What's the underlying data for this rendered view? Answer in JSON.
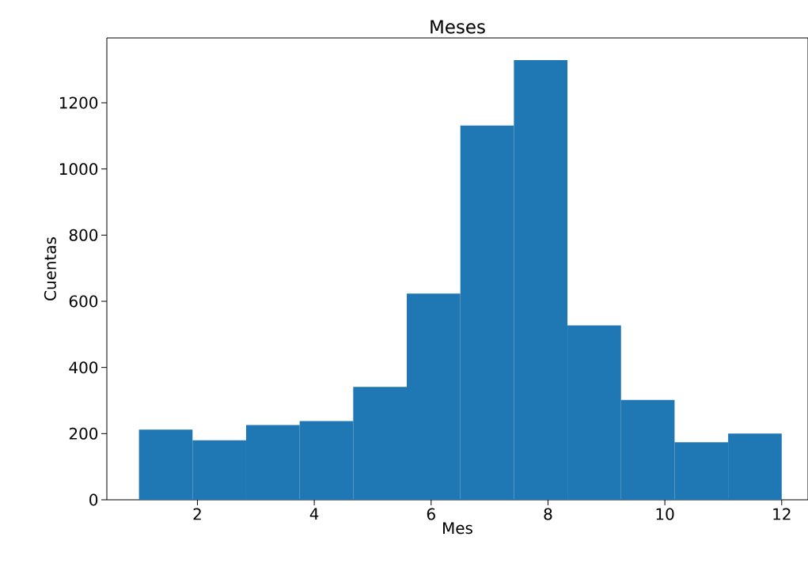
{
  "chart_data": {
    "type": "histogram",
    "title": "Meses",
    "xlabel": "Mes",
    "ylabel": "Cuentas",
    "color": "#1f77b4",
    "bins": [
      1,
      1.9167,
      2.8333,
      3.75,
      4.6667,
      5.5833,
      6.5,
      7.4167,
      8.3333,
      9.25,
      10.1667,
      11.0833,
      12
    ],
    "values": [
      212,
      180,
      226,
      238,
      341,
      623,
      1131,
      1329,
      527,
      302,
      174,
      200
    ],
    "xlim": [
      0.45,
      12.45
    ],
    "ylim": [
      0,
      1396
    ],
    "xticks": [
      2,
      4,
      6,
      8,
      10,
      12
    ],
    "yticks": [
      0,
      200,
      400,
      600,
      800,
      1000,
      1200
    ]
  }
}
